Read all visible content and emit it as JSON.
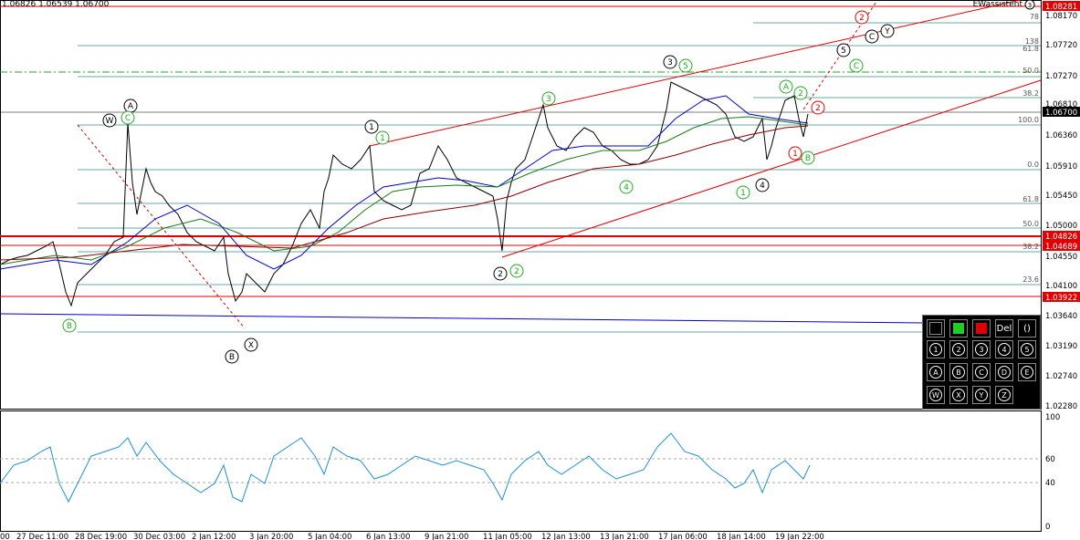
{
  "header": {
    "ohlc": "1.06826 1.06539 1.06700",
    "indicator_title": "EWassistent"
  },
  "price_axis": {
    "labels": [
      "1.08170",
      "1.07720",
      "1.07270",
      "1.06810",
      "1.06360",
      "1.05910",
      "1.05450",
      "1.05000",
      "1.04550",
      "1.04100",
      "1.03640",
      "1.03190",
      "1.02740",
      "1.02280"
    ],
    "tags": [
      {
        "text": "1.08281",
        "color": "#e00000"
      },
      {
        "text": "1.06700",
        "color": "#000000"
      },
      {
        "text": "1.04826",
        "color": "#e00000"
      },
      {
        "text": "1.04689",
        "color": "#e00000"
      },
      {
        "text": "1.03922",
        "color": "#e00000"
      }
    ]
  },
  "rsi_axis": {
    "labels": [
      "100",
      "60",
      "40",
      "0"
    ]
  },
  "time_axis": {
    "labels": [
      "00",
      "27 Dec 11:00",
      "28 Dec 19:00",
      "30 Dec 03:00",
      "2 Jan 12:00",
      "3 Jan 20:00",
      "5 Jan 04:00",
      "6 Jan 13:00",
      "9 Jan 21:00",
      "11 Jan 05:00",
      "12 Jan 13:00",
      "13 Jan 21:00",
      "17 Jan 06:00",
      "18 Jan 14:00",
      "19 Jan 22:00"
    ]
  },
  "fib_labels": {
    "set1": [
      "78",
      "138",
      "61.8",
      "50.0",
      "38.2",
      "100.0",
      "0.0"
    ],
    "set2": [
      "61.8",
      "50.0",
      "38.2",
      "23.6"
    ]
  },
  "wave_labels": [
    {
      "text": "1",
      "color": "#000"
    },
    {
      "text": "1",
      "color": "#22aa22"
    },
    {
      "text": "2",
      "color": "#000"
    },
    {
      "text": "2",
      "color": "#22aa22"
    },
    {
      "text": "3",
      "color": "#000"
    },
    {
      "text": "5",
      "color": "#22aa22"
    },
    {
      "text": "3",
      "color": "#22aa22"
    },
    {
      "text": "4",
      "color": "#22aa22"
    },
    {
      "text": "1",
      "color": "#22aa22"
    },
    {
      "text": "4",
      "color": "#000"
    },
    {
      "text": "A",
      "color": "#000"
    },
    {
      "text": "W",
      "color": "#000"
    },
    {
      "text": "C",
      "color": "#22aa22"
    },
    {
      "text": "B",
      "color": "#22aa22"
    },
    {
      "text": "B",
      "color": "#000"
    },
    {
      "text": "X",
      "color": "#000"
    },
    {
      "text": "A",
      "color": "#22aa22"
    },
    {
      "text": "2",
      "color": "#22aa22"
    },
    {
      "text": "2",
      "color": "#e00000"
    },
    {
      "text": "1",
      "color": "#e00000"
    },
    {
      "text": "B",
      "color": "#22aa22"
    },
    {
      "text": "5",
      "color": "#000"
    },
    {
      "text": "C",
      "color": "#000"
    },
    {
      "text": "Y",
      "color": "#000"
    },
    {
      "text": "C",
      "color": "#22aa22"
    },
    {
      "text": "2",
      "color": "#e00000"
    },
    {
      "text": "3",
      "color": "#000"
    }
  ],
  "panel": {
    "top_row": [
      {
        "name": "color-black-button",
        "label": ""
      },
      {
        "name": "color-green-button",
        "label": ""
      },
      {
        "name": "color-red-button",
        "label": ""
      },
      {
        "name": "delete-button",
        "label": "Del"
      },
      {
        "name": "bracket-toggle-button",
        "label": "()"
      }
    ],
    "row_numbers": [
      "1",
      "2",
      "3",
      "4",
      "5"
    ],
    "row_abc": [
      "A",
      "B",
      "C",
      "D",
      "E"
    ],
    "row_wxyz": [
      "W",
      "X",
      "Y",
      "Z"
    ]
  },
  "colors": {
    "green": "#22aa22",
    "red": "#e00000",
    "blue": "#0000cc",
    "rsi": "#1e90d0",
    "fib": "#3a8a8a"
  }
}
